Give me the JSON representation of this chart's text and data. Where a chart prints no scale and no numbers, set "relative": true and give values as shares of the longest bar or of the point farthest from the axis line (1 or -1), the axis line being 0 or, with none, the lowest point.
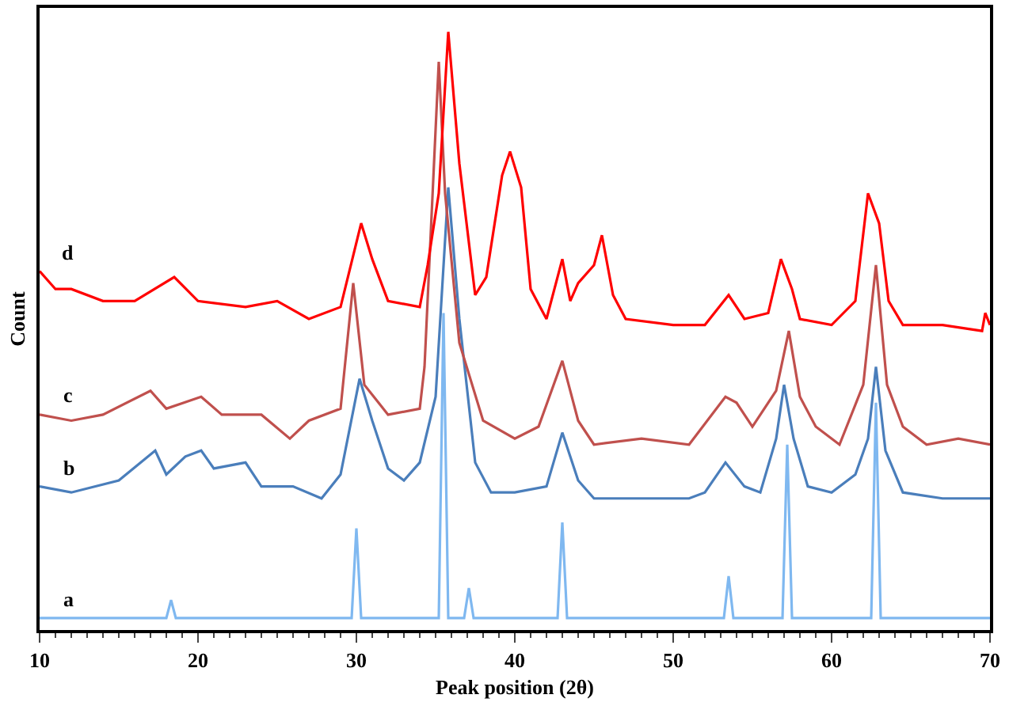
{
  "chart_data": {
    "type": "line",
    "relative": true,
    "xlabel": "Peak position (2θ)",
    "ylabel": "Count",
    "xlim": [
      10,
      70
    ],
    "xticks": [
      10,
      20,
      30,
      40,
      50,
      60,
      70
    ],
    "legend": false,
    "marker": "none",
    "line_style": "solid",
    "series": [
      {
        "name": "a",
        "color": "#7fb8f0",
        "x": [
          10,
          18.0,
          18.3,
          18.6,
          29.7,
          30.0,
          30.3,
          35.2,
          35.5,
          35.8,
          36.8,
          37.1,
          37.4,
          42.7,
          43.0,
          43.3,
          53.2,
          53.5,
          53.8,
          56.9,
          57.2,
          57.5,
          62.5,
          62.8,
          63.1,
          70
        ],
        "values": [
          0.02,
          0.02,
          0.05,
          0.02,
          0.02,
          0.17,
          0.02,
          0.02,
          0.53,
          0.02,
          0.02,
          0.07,
          0.02,
          0.02,
          0.18,
          0.02,
          0.02,
          0.09,
          0.02,
          0.02,
          0.31,
          0.02,
          0.02,
          0.38,
          0.02,
          0.02
        ]
      },
      {
        "name": "b",
        "color": "#4a7ebb",
        "x": [
          10,
          12,
          15,
          17.3,
          18,
          19.2,
          20.2,
          21,
          23,
          24,
          26,
          27.8,
          29,
          30.2,
          31,
          32,
          33,
          34,
          35,
          35.8,
          36.5,
          37.5,
          38.5,
          40,
          42,
          43.0,
          44,
          45,
          48,
          51,
          52,
          53.3,
          54.5,
          55.5,
          56.5,
          57.0,
          57.6,
          58.5,
          60,
          61.5,
          62.3,
          62.8,
          63.4,
          64.5,
          67,
          70
        ],
        "values": [
          0.24,
          0.23,
          0.25,
          0.3,
          0.26,
          0.29,
          0.3,
          0.27,
          0.28,
          0.24,
          0.24,
          0.22,
          0.26,
          0.42,
          0.35,
          0.27,
          0.25,
          0.28,
          0.39,
          0.74,
          0.52,
          0.28,
          0.23,
          0.23,
          0.24,
          0.33,
          0.25,
          0.22,
          0.22,
          0.22,
          0.23,
          0.28,
          0.24,
          0.23,
          0.32,
          0.41,
          0.32,
          0.24,
          0.23,
          0.26,
          0.32,
          0.44,
          0.3,
          0.23,
          0.22,
          0.22
        ]
      },
      {
        "name": "c",
        "color": "#c0504d",
        "x": [
          10,
          12,
          14,
          17,
          18,
          20.2,
          21.5,
          24,
          25.8,
          27,
          29,
          29.8,
          30.5,
          32,
          34,
          34.3,
          35.2,
          35.6,
          36.5,
          38,
          40,
          41.5,
          43.0,
          44,
          45,
          48,
          51,
          53.3,
          54,
          55,
          56.5,
          57.3,
          58,
          59,
          60.5,
          62,
          62.8,
          63.5,
          64.5,
          66,
          68,
          70
        ],
        "values": [
          0.36,
          0.35,
          0.36,
          0.4,
          0.37,
          0.39,
          0.36,
          0.36,
          0.32,
          0.35,
          0.37,
          0.58,
          0.41,
          0.36,
          0.37,
          0.44,
          0.95,
          0.73,
          0.48,
          0.35,
          0.32,
          0.34,
          0.45,
          0.35,
          0.31,
          0.32,
          0.31,
          0.39,
          0.38,
          0.34,
          0.4,
          0.5,
          0.39,
          0.34,
          0.31,
          0.41,
          0.61,
          0.41,
          0.34,
          0.31,
          0.32,
          0.31
        ]
      },
      {
        "name": "d",
        "color": "#ff0000",
        "x": [
          10,
          11,
          12,
          14,
          16,
          18.5,
          20,
          23,
          25,
          27,
          29,
          30.3,
          31,
          32,
          34,
          34.5,
          35.2,
          35.8,
          36.5,
          37.5,
          38.2,
          39.2,
          39.7,
          40.4,
          41,
          42,
          43.0,
          43.5,
          44,
          45,
          45.5,
          46.2,
          47,
          50,
          52,
          53.5,
          54.5,
          56,
          56.8,
          57.5,
          58,
          60,
          61.5,
          62.3,
          63,
          63.6,
          64.5,
          67,
          69.5,
          69.7,
          70
        ],
        "values": [
          0.6,
          0.57,
          0.57,
          0.55,
          0.55,
          0.59,
          0.55,
          0.54,
          0.55,
          0.52,
          0.54,
          0.68,
          0.62,
          0.55,
          0.54,
          0.61,
          0.73,
          1.0,
          0.78,
          0.56,
          0.59,
          0.76,
          0.8,
          0.74,
          0.57,
          0.52,
          0.62,
          0.55,
          0.58,
          0.61,
          0.66,
          0.56,
          0.52,
          0.51,
          0.51,
          0.56,
          0.52,
          0.53,
          0.62,
          0.57,
          0.52,
          0.51,
          0.55,
          0.73,
          0.68,
          0.55,
          0.51,
          0.51,
          0.5,
          0.53,
          0.51
        ]
      }
    ]
  }
}
